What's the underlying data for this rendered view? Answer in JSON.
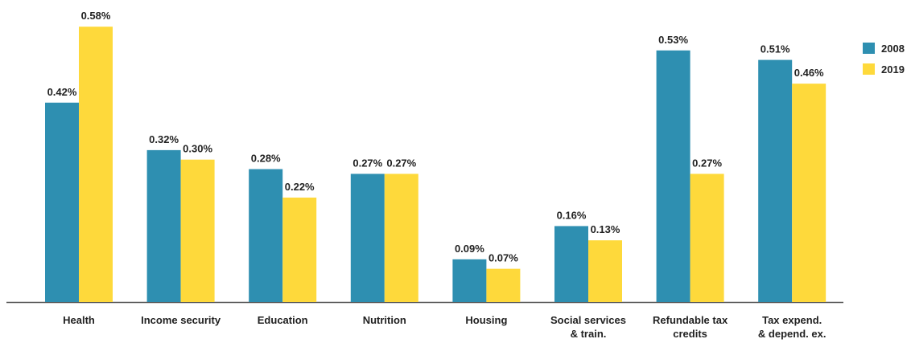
{
  "chart_data": {
    "type": "bar",
    "categories": [
      [
        "Health"
      ],
      [
        "Income security"
      ],
      [
        "Education"
      ],
      [
        "Nutrition"
      ],
      [
        "Housing"
      ],
      [
        "Social services",
        "& train."
      ],
      [
        "Refundable tax",
        "credits"
      ],
      [
        "Tax expend.",
        "& depend. ex."
      ]
    ],
    "series": [
      {
        "name": "2008",
        "color": "#2e8fb1",
        "values": [
          0.42,
          0.32,
          0.28,
          0.27,
          0.09,
          0.16,
          0.53,
          0.51
        ],
        "value_labels": [
          "0.42%",
          "0.32%",
          "0.28%",
          "0.27%",
          "0.09%",
          "0.16%",
          "0.53%",
          "0.51%"
        ]
      },
      {
        "name": "2019",
        "color": "#fed93b",
        "values": [
          0.58,
          0.3,
          0.22,
          0.27,
          0.07,
          0.13,
          0.27,
          0.46
        ],
        "value_labels": [
          "0.58%",
          "0.30%",
          "0.22%",
          "0.27%",
          "0.07%",
          "0.13%",
          "0.27%",
          "0.46%"
        ]
      }
    ],
    "legend": "top-right"
  }
}
